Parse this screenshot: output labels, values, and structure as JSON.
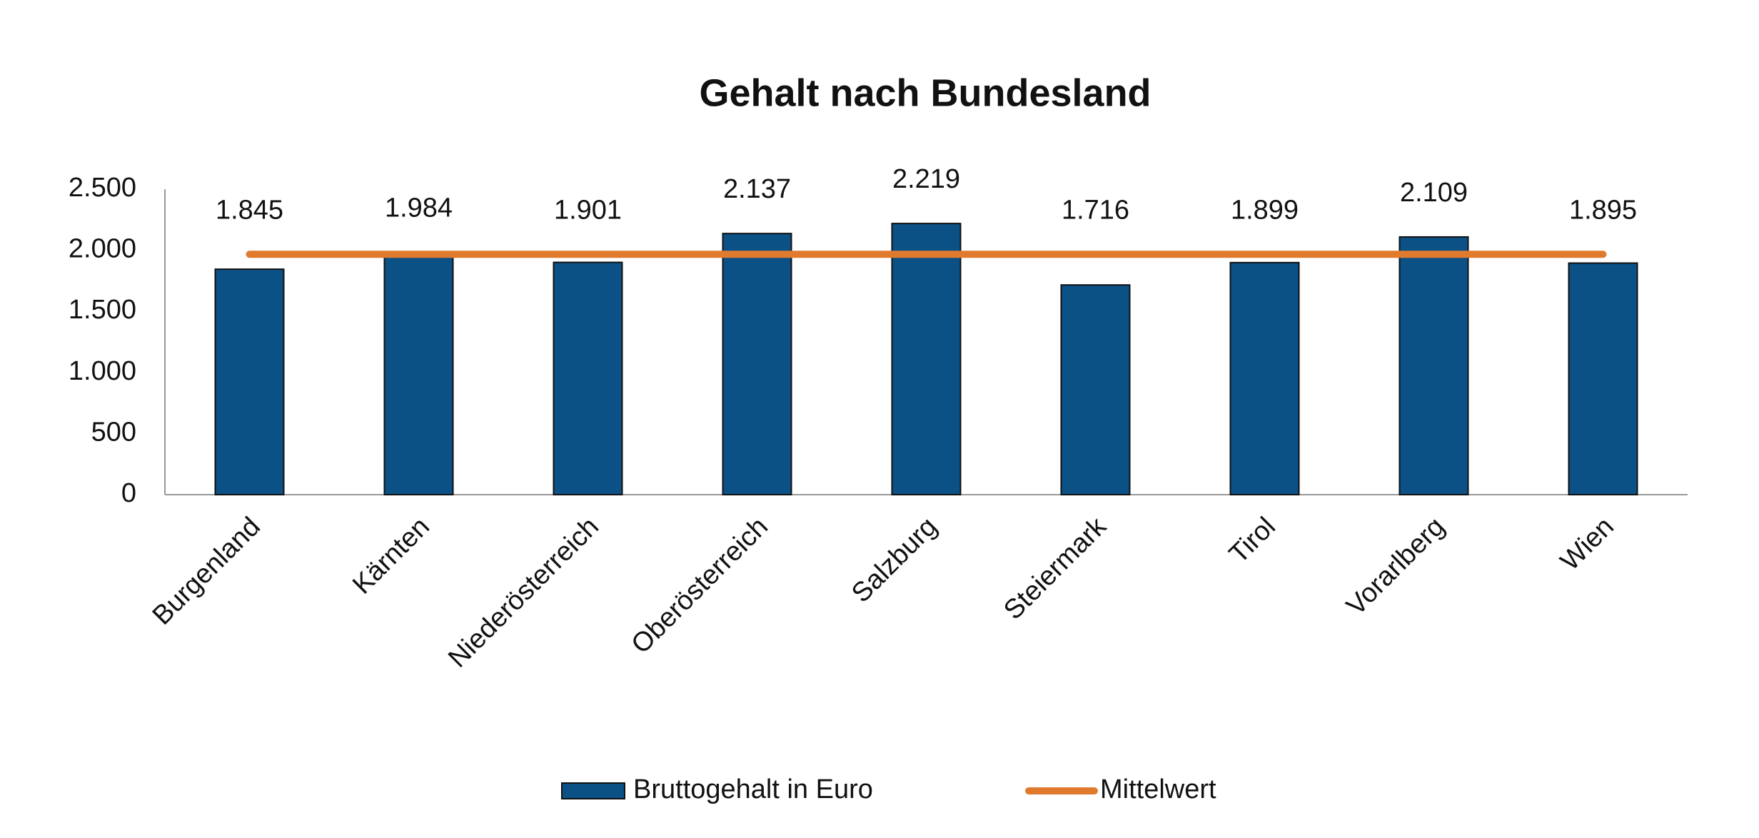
{
  "chart_data": {
    "type": "bar",
    "title": "Gehalt nach Bundesland",
    "categories": [
      "Burgenland",
      "Kärnten",
      "Niederösterreich",
      "Oberösterreich",
      "Salzburg",
      "Steiermark",
      "Tirol",
      "Vorarlberg",
      "Wien"
    ],
    "series": [
      {
        "name": "Bruttogehalt in Euro",
        "type": "bar",
        "color": "#0b5186",
        "values": [
          1845,
          1984,
          1901,
          2137,
          2219,
          1716,
          1899,
          2109,
          1895
        ],
        "value_labels": [
          "1.845",
          "1.984",
          "1.901",
          "2.137",
          "2.219",
          "1.716",
          "1.899",
          "2.109",
          "1.895"
        ]
      },
      {
        "name": "Mittelwert",
        "type": "line",
        "color": "#e07b2e",
        "values": [
          1967,
          1967,
          1967,
          1967,
          1967,
          1967,
          1967,
          1967,
          1967
        ]
      }
    ],
    "ylim": [
      0,
      2500
    ],
    "yticks": [
      0,
      500,
      {
        "value": 1000,
        "label": "1.000"
      },
      {
        "value": 1500,
        "label": "1.500"
      },
      {
        "value": 2000,
        "label": "2.000"
      },
      {
        "value": 2500,
        "label": "2.500"
      }
    ],
    "grid": false,
    "legend": "bottom"
  }
}
